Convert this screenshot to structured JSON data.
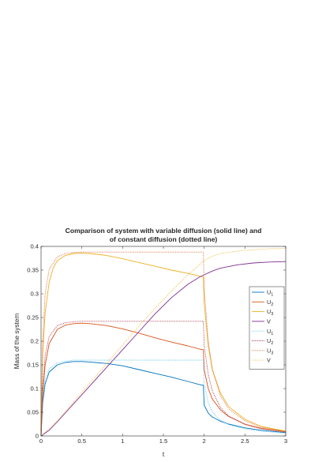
{
  "chart_data": {
    "type": "line",
    "title": [
      "Comparison of system with variable diffusion (solid line) and",
      "of constant diffusion (dotted line)"
    ],
    "xlabel": "t",
    "ylabel": "Mass of the system",
    "xlim": [
      0,
      3
    ],
    "ylim": [
      0,
      0.4
    ],
    "xticks": [
      0,
      0.5,
      1,
      1.5,
      2,
      2.5,
      3
    ],
    "xtick_labels": [
      "0",
      "0.5",
      "1",
      "1.5",
      "2",
      "2.5",
      "3"
    ],
    "yticks": [
      0,
      0.05,
      0.1,
      0.15,
      0.2,
      0.25,
      0.3,
      0.35,
      0.4
    ],
    "ytick_labels": [
      "0",
      "0.05",
      "0.1",
      "0.15",
      "0.2",
      "0.25",
      "0.3",
      "0.35",
      "0.4"
    ],
    "grid": false,
    "legend_position": "right",
    "series": [
      {
        "name": "U",
        "subscript": "1",
        "style": "solid",
        "color": "#0072BD",
        "points": [
          [
            0,
            0
          ],
          [
            0.02,
            0.07
          ],
          [
            0.05,
            0.11
          ],
          [
            0.1,
            0.135
          ],
          [
            0.2,
            0.15
          ],
          [
            0.3,
            0.155
          ],
          [
            0.4,
            0.157
          ],
          [
            0.5,
            0.157
          ],
          [
            0.6,
            0.156
          ],
          [
            0.8,
            0.153
          ],
          [
            1.0,
            0.148
          ],
          [
            1.2,
            0.14
          ],
          [
            1.4,
            0.132
          ],
          [
            1.6,
            0.124
          ],
          [
            1.8,
            0.115
          ],
          [
            1.95,
            0.108
          ],
          [
            1.99,
            0.107
          ],
          [
            2.0,
            0.065
          ],
          [
            2.05,
            0.048
          ],
          [
            2.1,
            0.04
          ],
          [
            2.2,
            0.031
          ],
          [
            2.3,
            0.025
          ],
          [
            2.5,
            0.017
          ],
          [
            2.7,
            0.012
          ],
          [
            3.0,
            0.007
          ]
        ]
      },
      {
        "name": "U",
        "subscript": "2",
        "style": "solid",
        "color": "#D95319",
        "points": [
          [
            0,
            0
          ],
          [
            0.02,
            0.09
          ],
          [
            0.05,
            0.15
          ],
          [
            0.1,
            0.195
          ],
          [
            0.2,
            0.225
          ],
          [
            0.3,
            0.234
          ],
          [
            0.4,
            0.237
          ],
          [
            0.5,
            0.238
          ],
          [
            0.6,
            0.237
          ],
          [
            0.8,
            0.233
          ],
          [
            1.0,
            0.226
          ],
          [
            1.2,
            0.217
          ],
          [
            1.4,
            0.207
          ],
          [
            1.6,
            0.198
          ],
          [
            1.8,
            0.19
          ],
          [
            1.95,
            0.183
          ],
          [
            1.99,
            0.182
          ],
          [
            2.0,
            0.14
          ],
          [
            2.05,
            0.1
          ],
          [
            2.1,
            0.078
          ],
          [
            2.2,
            0.055
          ],
          [
            2.3,
            0.041
          ],
          [
            2.5,
            0.025
          ],
          [
            2.7,
            0.016
          ],
          [
            3.0,
            0.009
          ]
        ]
      },
      {
        "name": "U",
        "subscript": "3",
        "style": "solid",
        "color": "#EDB120",
        "points": [
          [
            0,
            0
          ],
          [
            0.02,
            0.17
          ],
          [
            0.05,
            0.26
          ],
          [
            0.1,
            0.325
          ],
          [
            0.15,
            0.355
          ],
          [
            0.2,
            0.37
          ],
          [
            0.3,
            0.381
          ],
          [
            0.4,
            0.385
          ],
          [
            0.5,
            0.386
          ],
          [
            0.6,
            0.385
          ],
          [
            0.8,
            0.381
          ],
          [
            1.0,
            0.374
          ],
          [
            1.2,
            0.366
          ],
          [
            1.4,
            0.358
          ],
          [
            1.6,
            0.35
          ],
          [
            1.8,
            0.343
          ],
          [
            1.95,
            0.337
          ],
          [
            1.99,
            0.335
          ],
          [
            2.0,
            0.28
          ],
          [
            2.05,
            0.19
          ],
          [
            2.1,
            0.14
          ],
          [
            2.2,
            0.09
          ],
          [
            2.3,
            0.062
          ],
          [
            2.5,
            0.035
          ],
          [
            2.7,
            0.02
          ],
          [
            3.0,
            0.01
          ]
        ]
      },
      {
        "name": "V",
        "subscript": "",
        "style": "solid",
        "color": "#7E2F8E",
        "points": [
          [
            0,
            0
          ],
          [
            0.1,
            0.012
          ],
          [
            0.2,
            0.03
          ],
          [
            0.4,
            0.068
          ],
          [
            0.6,
            0.106
          ],
          [
            0.8,
            0.144
          ],
          [
            1.0,
            0.182
          ],
          [
            1.2,
            0.22
          ],
          [
            1.4,
            0.258
          ],
          [
            1.6,
            0.292
          ],
          [
            1.8,
            0.32
          ],
          [
            1.95,
            0.336
          ],
          [
            2.0,
            0.34
          ],
          [
            2.1,
            0.348
          ],
          [
            2.2,
            0.354
          ],
          [
            2.4,
            0.361
          ],
          [
            2.6,
            0.365
          ],
          [
            2.8,
            0.367
          ],
          [
            3.0,
            0.368
          ]
        ]
      },
      {
        "name": "U",
        "subscript": "1",
        "style": "dotted",
        "color": "#4DBEEE",
        "points": [
          [
            0,
            0
          ],
          [
            0.02,
            0.08
          ],
          [
            0.05,
            0.12
          ],
          [
            0.1,
            0.142
          ],
          [
            0.2,
            0.154
          ],
          [
            0.3,
            0.158
          ],
          [
            0.4,
            0.16
          ],
          [
            0.5,
            0.16
          ],
          [
            1.0,
            0.16
          ],
          [
            1.5,
            0.16
          ],
          [
            1.99,
            0.16
          ],
          [
            2.0,
            0.11
          ],
          [
            2.05,
            0.07
          ],
          [
            2.1,
            0.05
          ],
          [
            2.2,
            0.033
          ],
          [
            2.3,
            0.024
          ],
          [
            2.5,
            0.015
          ],
          [
            2.7,
            0.01
          ],
          [
            3.0,
            0.006
          ]
        ]
      },
      {
        "name": "U",
        "subscript": "2",
        "style": "dotted",
        "color": "#A2142F",
        "points": [
          [
            0,
            0
          ],
          [
            0.02,
            0.1
          ],
          [
            0.05,
            0.17
          ],
          [
            0.1,
            0.21
          ],
          [
            0.2,
            0.233
          ],
          [
            0.3,
            0.239
          ],
          [
            0.4,
            0.241
          ],
          [
            0.5,
            0.242
          ],
          [
            1.0,
            0.242
          ],
          [
            1.5,
            0.242
          ],
          [
            1.99,
            0.242
          ],
          [
            2.0,
            0.19
          ],
          [
            2.05,
            0.13
          ],
          [
            2.1,
            0.095
          ],
          [
            2.2,
            0.06
          ],
          [
            2.3,
            0.042
          ],
          [
            2.5,
            0.024
          ],
          [
            2.7,
            0.015
          ],
          [
            3.0,
            0.008
          ]
        ]
      },
      {
        "name": "U",
        "subscript": "3",
        "style": "dotted",
        "color": "#D95319",
        "points": [
          [
            0,
            0
          ],
          [
            0.02,
            0.2
          ],
          [
            0.05,
            0.3
          ],
          [
            0.1,
            0.352
          ],
          [
            0.2,
            0.378
          ],
          [
            0.3,
            0.385
          ],
          [
            0.4,
            0.387
          ],
          [
            0.5,
            0.388
          ],
          [
            1.0,
            0.388
          ],
          [
            1.5,
            0.388
          ],
          [
            1.99,
            0.388
          ],
          [
            2.0,
            0.31
          ],
          [
            2.05,
            0.2
          ],
          [
            2.1,
            0.14
          ],
          [
            2.2,
            0.085
          ],
          [
            2.3,
            0.057
          ],
          [
            2.5,
            0.032
          ],
          [
            2.7,
            0.018
          ],
          [
            3.0,
            0.009
          ]
        ]
      },
      {
        "name": "V",
        "subscript": "",
        "style": "dotted",
        "color": "#EDB120",
        "points": [
          [
            0,
            0
          ],
          [
            0.2,
            0.032
          ],
          [
            0.4,
            0.072
          ],
          [
            0.6,
            0.112
          ],
          [
            0.8,
            0.152
          ],
          [
            1.0,
            0.192
          ],
          [
            1.2,
            0.232
          ],
          [
            1.4,
            0.27
          ],
          [
            1.6,
            0.306
          ],
          [
            1.8,
            0.34
          ],
          [
            2.0,
            0.37
          ],
          [
            2.1,
            0.379
          ],
          [
            2.2,
            0.385
          ],
          [
            2.4,
            0.39
          ],
          [
            2.6,
            0.393
          ],
          [
            2.8,
            0.395
          ],
          [
            3.0,
            0.396
          ]
        ]
      }
    ]
  }
}
